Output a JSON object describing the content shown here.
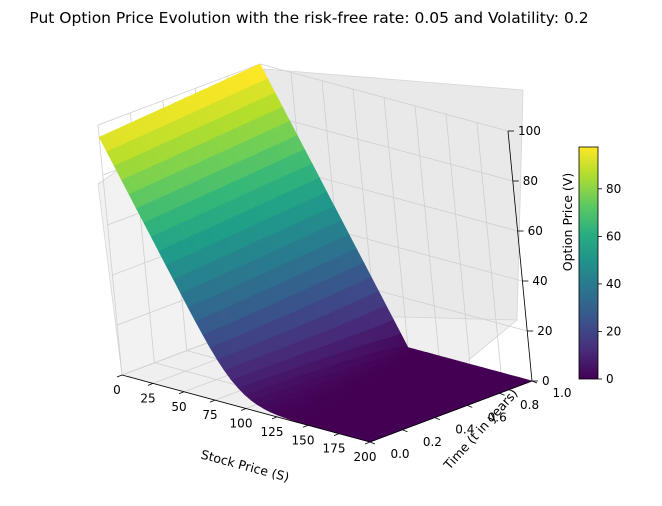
{
  "chart_data": {
    "type": "surface3d",
    "title": "Put Option Price Evolution with the risk-free rate: 0.05 and Volatility: 0.2",
    "xlabel": "Stock Price (S)",
    "ylabel": "Time (t in years)",
    "zlabel": "Option Price (V)",
    "xlim": [
      0,
      200
    ],
    "ylim": [
      0,
      1
    ],
    "zlim": [
      0,
      100
    ],
    "x_ticks": [
      "0",
      "25",
      "50",
      "75",
      "100",
      "125",
      "150",
      "175",
      "200"
    ],
    "y_ticks": [
      "0.0",
      "0.2",
      "0.4",
      "0.6",
      "0.8",
      "1.0"
    ],
    "z_ticks": [
      "0",
      "20",
      "40",
      "60",
      "80",
      "100"
    ],
    "strike": 100,
    "risk_free_rate": 0.05,
    "volatility": 0.2,
    "maturity": 1.0,
    "surface_min": 0,
    "surface_max": 97.6,
    "colormap": "viridis",
    "grid": true,
    "colorbar": {
      "position": "right",
      "ticks": [
        "0",
        "20",
        "40",
        "60",
        "80"
      ],
      "range": [
        0,
        97.6
      ]
    }
  }
}
